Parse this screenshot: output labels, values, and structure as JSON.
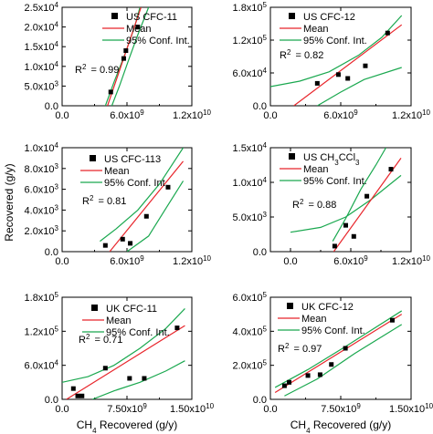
{
  "colors": {
    "mean": "#e8252b",
    "ci": "#1aa84f",
    "points": "#000000",
    "axis": "#000000"
  },
  "ylabel_main": "Recovered (g/y)",
  "xlabel_prefix": "CH",
  "xlabel_sub": "4",
  "xlabel_suffix": " Recovered (g/y)",
  "chart_data": [
    {
      "type": "scatter",
      "title_parts": [
        {
          "t": "US CFC-11",
          "s": 0
        }
      ],
      "legend": [
        "Mean",
        "95% Conf. Int."
      ],
      "r2_value": "= 0.99",
      "xlim": [
        0,
        12000000000
      ],
      "ylim": [
        0,
        25000
      ],
      "xticks": [
        {
          "v": 0,
          "p": [
            "0.0"
          ]
        },
        {
          "v": 6000000000,
          "p": [
            "6.0x10",
            "9"
          ]
        },
        {
          "v": 12000000000,
          "p": [
            "1.2x10",
            "10"
          ]
        }
      ],
      "yticks": [
        {
          "v": 0,
          "p": [
            "0.0"
          ]
        },
        {
          "v": 5000,
          "p": [
            "5.0x10",
            "3"
          ]
        },
        {
          "v": 10000,
          "p": [
            "1.0x10",
            "4"
          ]
        },
        {
          "v": 15000,
          "p": [
            "1.5x10",
            "4"
          ]
        },
        {
          "v": 20000,
          "p": [
            "2.0x10",
            "4"
          ]
        },
        {
          "v": 25000,
          "p": [
            "2.5x10",
            "4"
          ]
        }
      ],
      "points": [
        [
          4500000000,
          3500
        ],
        [
          5700000000,
          12000
        ],
        [
          5900000000,
          14000
        ],
        [
          7000000000,
          20000
        ]
      ],
      "mean": [
        [
          4200000000,
          0
        ],
        [
          7300000000,
          25000
        ]
      ],
      "ci_upper": [
        [
          4000000000,
          0
        ],
        [
          4800000000,
          6000
        ],
        [
          5800000000,
          13000
        ],
        [
          6700000000,
          20000
        ],
        [
          7200000000,
          25000
        ]
      ],
      "ci_lower": [
        [
          4600000000,
          0
        ],
        [
          5300000000,
          5000
        ],
        [
          6200000000,
          12000
        ],
        [
          7000000000,
          18000
        ],
        [
          8000000000,
          25000
        ]
      ]
    },
    {
      "type": "scatter",
      "title_parts": [
        {
          "t": "US CFC-12",
          "s": 0
        }
      ],
      "legend": [
        "Mean",
        "95% Conf. Int."
      ],
      "r2_value": "= 0.82",
      "xlim": [
        0,
        12000000000
      ],
      "ylim": [
        0,
        180000
      ],
      "xticks": [
        {
          "v": 0,
          "p": [
            "0.0"
          ]
        },
        {
          "v": 6000000000,
          "p": [
            "6.0x10",
            "9"
          ]
        },
        {
          "v": 12000000000,
          "p": [
            "1.2x10",
            "10"
          ]
        }
      ],
      "yticks": [
        {
          "v": 0,
          "p": [
            "0.0"
          ]
        },
        {
          "v": 60000,
          "p": [
            "6.0x10",
            "4"
          ]
        },
        {
          "v": 120000,
          "p": [
            "1.2x10",
            "5"
          ]
        },
        {
          "v": 180000,
          "p": [
            "1.8x10",
            "5"
          ]
        }
      ],
      "points": [
        [
          4000000000,
          41000
        ],
        [
          5800000000,
          57000
        ],
        [
          6600000000,
          50000
        ],
        [
          8100000000,
          73000
        ],
        [
          10000000000,
          133000
        ]
      ],
      "mean": [
        [
          2000000000,
          0
        ],
        [
          11200000000,
          148000
        ]
      ],
      "ci_upper": [
        [
          0,
          35000
        ],
        [
          2500000000,
          45000
        ],
        [
          5000000000,
          62000
        ],
        [
          7500000000,
          92000
        ],
        [
          9500000000,
          125000
        ],
        [
          11200000000,
          165000
        ]
      ],
      "ci_lower": [
        [
          4000000000,
          0
        ],
        [
          6000000000,
          25000
        ],
        [
          8000000000,
          48000
        ],
        [
          11200000000,
          70000
        ]
      ]
    },
    {
      "type": "scatter",
      "title_parts": [
        {
          "t": "US CFC-113",
          "s": 0
        }
      ],
      "legend": [
        "Mean",
        "95% Conf. Int."
      ],
      "r2_value": "= 0.81",
      "xlim": [
        0,
        12000000000
      ],
      "ylim": [
        0,
        10000
      ],
      "xticks": [
        {
          "v": 0,
          "p": [
            "0.0"
          ]
        },
        {
          "v": 6000000000,
          "p": [
            "6.0x10",
            "9"
          ]
        },
        {
          "v": 12000000000,
          "p": [
            "1.2x10",
            "10"
          ]
        }
      ],
      "yticks": [
        {
          "v": 0,
          "p": [
            "0.0"
          ]
        },
        {
          "v": 2000,
          "p": [
            "2.0x10",
            "3"
          ]
        },
        {
          "v": 4000,
          "p": [
            "4.0x10",
            "3"
          ]
        },
        {
          "v": 6000,
          "p": [
            "6.0x10",
            "3"
          ]
        },
        {
          "v": 8000,
          "p": [
            "8.0x10",
            "3"
          ]
        },
        {
          "v": 10000,
          "p": [
            "1.0x10",
            "4"
          ]
        }
      ],
      "points": [
        [
          4000000000,
          600
        ],
        [
          5600000000,
          1200
        ],
        [
          6300000000,
          800
        ],
        [
          7800000000,
          3400
        ],
        [
          9800000000,
          6200
        ]
      ],
      "mean": [
        [
          4400000000,
          0
        ],
        [
          11200000000,
          8700
        ]
      ],
      "ci_upper": [
        [
          3500000000,
          1000
        ],
        [
          5000000000,
          2200
        ],
        [
          7000000000,
          4000
        ],
        [
          9000000000,
          6500
        ],
        [
          11200000000,
          10000
        ]
      ],
      "ci_lower": [
        [
          6000000000,
          0
        ],
        [
          8000000000,
          1500
        ],
        [
          9500000000,
          4000
        ],
        [
          11200000000,
          6800
        ]
      ]
    },
    {
      "type": "scatter",
      "title_parts": [
        {
          "t": "US CH",
          "s": 0
        },
        {
          "t": "3",
          "s": 1
        },
        {
          "t": "CCl",
          "s": 0
        },
        {
          "t": "3",
          "s": 1
        }
      ],
      "legend": [
        "Mean",
        "95% Conf. Int."
      ],
      "r2_value": "= 0.88",
      "xlim": [
        -2000000000,
        12000000000
      ],
      "ylim": [
        0,
        15000
      ],
      "xticks": [
        {
          "v": 0,
          "p": [
            "0.0"
          ]
        },
        {
          "v": 6000000000,
          "p": [
            "6.0x10",
            "9"
          ]
        },
        {
          "v": 12000000000,
          "p": [
            "1.2x10",
            "10"
          ]
        }
      ],
      "yticks": [
        {
          "v": 0,
          "p": [
            "0.0"
          ]
        },
        {
          "v": 5000,
          "p": [
            "5.0x10",
            "3"
          ]
        },
        {
          "v": 10000,
          "p": [
            "1.0x10",
            "4"
          ]
        },
        {
          "v": 15000,
          "p": [
            "1.5x10",
            "4"
          ]
        }
      ],
      "points": [
        [
          4400000000,
          800
        ],
        [
          5500000000,
          3800
        ],
        [
          6300000000,
          2200
        ],
        [
          7600000000,
          8000
        ],
        [
          10000000000,
          11900
        ]
      ],
      "mean": [
        [
          4300000000,
          0
        ],
        [
          11000000000,
          13500
        ]
      ],
      "ci_upper": [
        [
          4200000000,
          1500
        ],
        [
          5500000000,
          4800
        ],
        [
          7000000000,
          9000
        ],
        [
          8500000000,
          12500
        ],
        [
          9500000000,
          15000
        ]
      ],
      "ci_lower": [
        [
          0,
          2800
        ],
        [
          3000000000,
          3500
        ],
        [
          5500000000,
          5000
        ],
        [
          8000000000,
          7500
        ],
        [
          11000000000,
          11000
        ]
      ]
    },
    {
      "type": "scatter",
      "title_parts": [
        {
          "t": "UK CFC-11",
          "s": 0
        }
      ],
      "legend": [
        "Mean",
        "95% Conf. Int."
      ],
      "r2_value": "= 0.71",
      "xlim": [
        0,
        15000000000
      ],
      "ylim": [
        0,
        180000
      ],
      "xticks": [
        {
          "v": 0,
          "p": [
            "0.0"
          ]
        },
        {
          "v": 7500000000,
          "p": [
            "7.50x10",
            "9"
          ]
        },
        {
          "v": 15000000000,
          "p": [
            "1.50x10",
            "10"
          ]
        }
      ],
      "yticks": [
        {
          "v": 0,
          "p": [
            "0.0"
          ]
        },
        {
          "v": 60000,
          "p": [
            "6.0x10",
            "4"
          ]
        },
        {
          "v": 120000,
          "p": [
            "1.2x10",
            "5"
          ]
        },
        {
          "v": 180000,
          "p": [
            "1.8x10",
            "5"
          ]
        }
      ],
      "points": [
        [
          1300000000,
          19000
        ],
        [
          1800000000,
          6000
        ],
        [
          2300000000,
          6000
        ],
        [
          5000000000,
          55000
        ],
        [
          7800000000,
          37000
        ],
        [
          9500000000,
          37000
        ],
        [
          13300000000,
          126000
        ]
      ],
      "mean": [
        [
          500000000,
          0
        ],
        [
          14200000000,
          130000
        ]
      ],
      "ci_upper": [
        [
          0,
          30000
        ],
        [
          3000000000,
          40000
        ],
        [
          6000000000,
          60000
        ],
        [
          9000000000,
          90000
        ],
        [
          12000000000,
          125000
        ],
        [
          14200000000,
          160000
        ]
      ],
      "ci_lower": [
        [
          3500000000,
          0
        ],
        [
          6000000000,
          15000
        ],
        [
          9000000000,
          30000
        ],
        [
          12000000000,
          50000
        ],
        [
          14200000000,
          68000
        ]
      ]
    },
    {
      "type": "scatter",
      "title_parts": [
        {
          "t": "UK CFC-12",
          "s": 0
        }
      ],
      "legend": [
        "Mean",
        "95% Conf. Int."
      ],
      "r2_value": "= 0.97",
      "xlim": [
        0,
        15000000000
      ],
      "ylim": [
        0,
        600000
      ],
      "xticks": [
        {
          "v": 0,
          "p": [
            "0.0"
          ]
        },
        {
          "v": 7500000000,
          "p": [
            "7.50x10",
            "9"
          ]
        },
        {
          "v": 15000000000,
          "p": [
            "1.50x10",
            "10"
          ]
        }
      ],
      "yticks": [
        {
          "v": 0,
          "p": [
            "0.0"
          ]
        },
        {
          "v": 200000,
          "p": [
            "2.0x10",
            "5"
          ]
        },
        {
          "v": 400000,
          "p": [
            "4.0x10",
            "5"
          ]
        },
        {
          "v": 600000,
          "p": [
            "6.0x10",
            "5"
          ]
        }
      ],
      "points": [
        [
          1500000000,
          80000
        ],
        [
          2000000000,
          100000
        ],
        [
          4000000000,
          140000
        ],
        [
          5300000000,
          145000
        ],
        [
          6500000000,
          205000
        ],
        [
          8000000000,
          300000
        ],
        [
          13000000000,
          465000
        ]
      ],
      "mean": [
        [
          500000000,
          40000
        ],
        [
          14000000000,
          500000
        ]
      ],
      "ci_upper": [
        [
          500000000,
          70000
        ],
        [
          4000000000,
          175000
        ],
        [
          8000000000,
          310000
        ],
        [
          14000000000,
          520000
        ]
      ],
      "ci_lower": [
        [
          1500000000,
          20000
        ],
        [
          5000000000,
          120000
        ],
        [
          9000000000,
          270000
        ],
        [
          14000000000,
          440000
        ]
      ]
    }
  ]
}
